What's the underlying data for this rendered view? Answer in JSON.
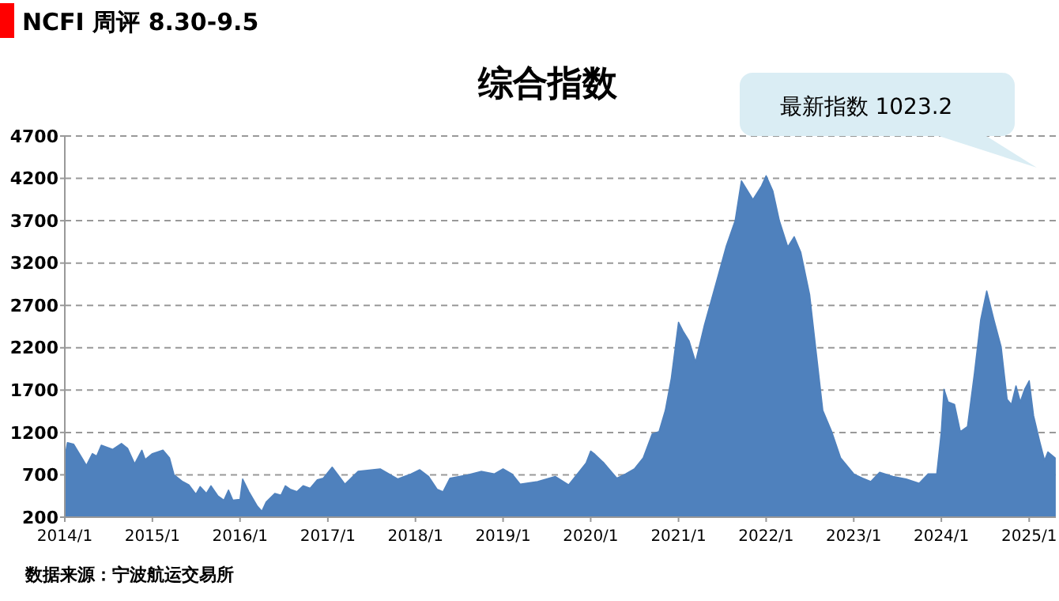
{
  "chart_data": {
    "type": "area",
    "title": "综合指数",
    "annotations": [
      "NCFI 周评 8.30-9.5",
      "最新指数 1023.2",
      "数据来源：宁波航运交易所"
    ],
    "xlim": [
      "2014-01-01",
      "2025-04-22"
    ],
    "ylim": [
      200,
      4700
    ],
    "xticks": [
      {
        "value": "2014-01-01",
        "label": "2014/1"
      },
      {
        "value": "2015-01-01",
        "label": "2015/1"
      },
      {
        "value": "2016-01-01",
        "label": "2016/1"
      },
      {
        "value": "2017-01-01",
        "label": "2017/1"
      },
      {
        "value": "2018-01-01",
        "label": "2018/1"
      },
      {
        "value": "2019-01-01",
        "label": "2019/1"
      },
      {
        "value": "2020-01-01",
        "label": "2020/1"
      },
      {
        "value": "2021-01-01",
        "label": "2021/1"
      },
      {
        "value": "2022-01-01",
        "label": "2022/1"
      },
      {
        "value": "2023-01-01",
        "label": "2023/1"
      },
      {
        "value": "2024-01-01",
        "label": "2024/1"
      },
      {
        "value": "2025-01-01",
        "label": "2025/1"
      }
    ],
    "yticks": [
      200,
      700,
      1200,
      1700,
      2200,
      2700,
      3200,
      3700,
      4200,
      4700
    ],
    "grid": "y",
    "series": [
      {
        "color": "#4f81bd",
        "x": [
          "2014-01-01",
          "2014-01-12",
          "2014-02-07",
          "2014-03-13",
          "2014-04-01",
          "2014-04-26",
          "2014-05-14",
          "2014-06-02",
          "2014-07-19",
          "2014-08-25",
          "2014-09-20",
          "2014-10-19",
          "2014-11-18",
          "2014-12-02",
          "2015-01-01",
          "2015-02-14",
          "2015-03-13",
          "2015-04-01",
          "2015-05-07",
          "2015-06-02",
          "2015-07-01",
          "2015-07-19",
          "2015-08-14",
          "2015-09-02",
          "2015-10-01",
          "2015-10-26",
          "2015-11-14",
          "2015-12-02",
          "2016-01-01",
          "2016-01-12",
          "2016-02-07",
          "2016-03-13",
          "2016-04-01",
          "2016-04-19",
          "2016-05-25",
          "2016-06-20",
          "2016-07-08",
          "2016-07-28",
          "2016-08-25",
          "2016-09-20",
          "2016-10-19",
          "2016-11-18",
          "2016-12-13",
          "2017-01-19",
          "2017-03-13",
          "2017-05-07",
          "2017-08-07",
          "2017-10-19",
          "2017-12-13",
          "2018-01-19",
          "2018-02-25",
          "2018-04-01",
          "2018-04-26",
          "2018-05-25",
          "2018-08-07",
          "2018-10-01",
          "2018-11-25",
          "2019-01-01",
          "2019-02-07",
          "2019-03-13",
          "2019-05-25",
          "2019-08-07",
          "2019-10-01",
          "2019-11-07",
          "2019-12-13",
          "2020-01-01",
          "2020-01-19",
          "2020-02-25",
          "2020-04-19",
          "2020-05-25",
          "2020-07-01",
          "2020-08-07",
          "2020-09-13",
          "2020-10-12",
          "2020-11-07",
          "2020-12-02",
          "2021-01-01",
          "2021-01-19",
          "2021-02-14",
          "2021-03-13",
          "2021-04-19",
          "2021-06-13",
          "2021-07-19",
          "2021-08-25",
          "2021-09-20",
          "2021-11-07",
          "2021-12-13",
          "2022-01-01",
          "2022-01-29",
          "2022-02-25",
          "2022-04-01",
          "2022-04-28",
          "2022-05-25",
          "2022-07-01",
          "2022-08-25",
          "2022-10-01",
          "2022-11-07",
          "2023-01-01",
          "2023-02-07",
          "2023-03-13",
          "2023-04-19",
          "2023-06-13",
          "2023-08-07",
          "2023-10-01",
          "2023-11-07",
          "2023-12-13",
          "2024-01-01",
          "2024-01-12",
          "2024-01-29",
          "2024-02-25",
          "2024-03-20",
          "2024-04-19",
          "2024-05-18",
          "2024-06-13",
          "2024-07-08",
          "2024-08-07",
          "2024-09-06",
          "2024-10-01",
          "2024-10-19",
          "2024-11-07",
          "2024-11-25",
          "2024-12-13",
          "2025-01-01",
          "2025-01-19",
          "2025-02-14",
          "2025-03-06",
          "2025-03-20",
          "2025-04-19"
        ],
        "values": [
          900,
          1080,
          1060,
          900,
          810,
          950,
          920,
          1050,
          1000,
          1070,
          1010,
          830,
          990,
          880,
          950,
          990,
          900,
          700,
          620,
          580,
          470,
          560,
          480,
          570,
          450,
          400,
          520,
          400,
          410,
          650,
          500,
          330,
          270,
          380,
          480,
          460,
          570,
          530,
          500,
          570,
          540,
          640,
          660,
          790,
          590,
          740,
          770,
          650,
          710,
          760,
          680,
          530,
          500,
          660,
          700,
          740,
          710,
          770,
          710,
          590,
          620,
          680,
          580,
          710,
          840,
          980,
          940,
          840,
          660,
          710,
          770,
          900,
          1180,
          1210,
          1460,
          1840,
          2500,
          2400,
          2280,
          2030,
          2470,
          3030,
          3400,
          3700,
          4170,
          3950,
          4110,
          4230,
          4050,
          3700,
          3390,
          3510,
          3330,
          2830,
          1460,
          1210,
          900,
          710,
          660,
          620,
          730,
          680,
          650,
          600,
          710,
          710,
          1210,
          1710,
          1560,
          1530,
          1210,
          1270,
          1900,
          2530,
          2870,
          2530,
          2210,
          1590,
          1530,
          1750,
          1560,
          1710,
          1810,
          1400,
          1090,
          870,
          970,
          900
        ]
      }
    ]
  }
}
